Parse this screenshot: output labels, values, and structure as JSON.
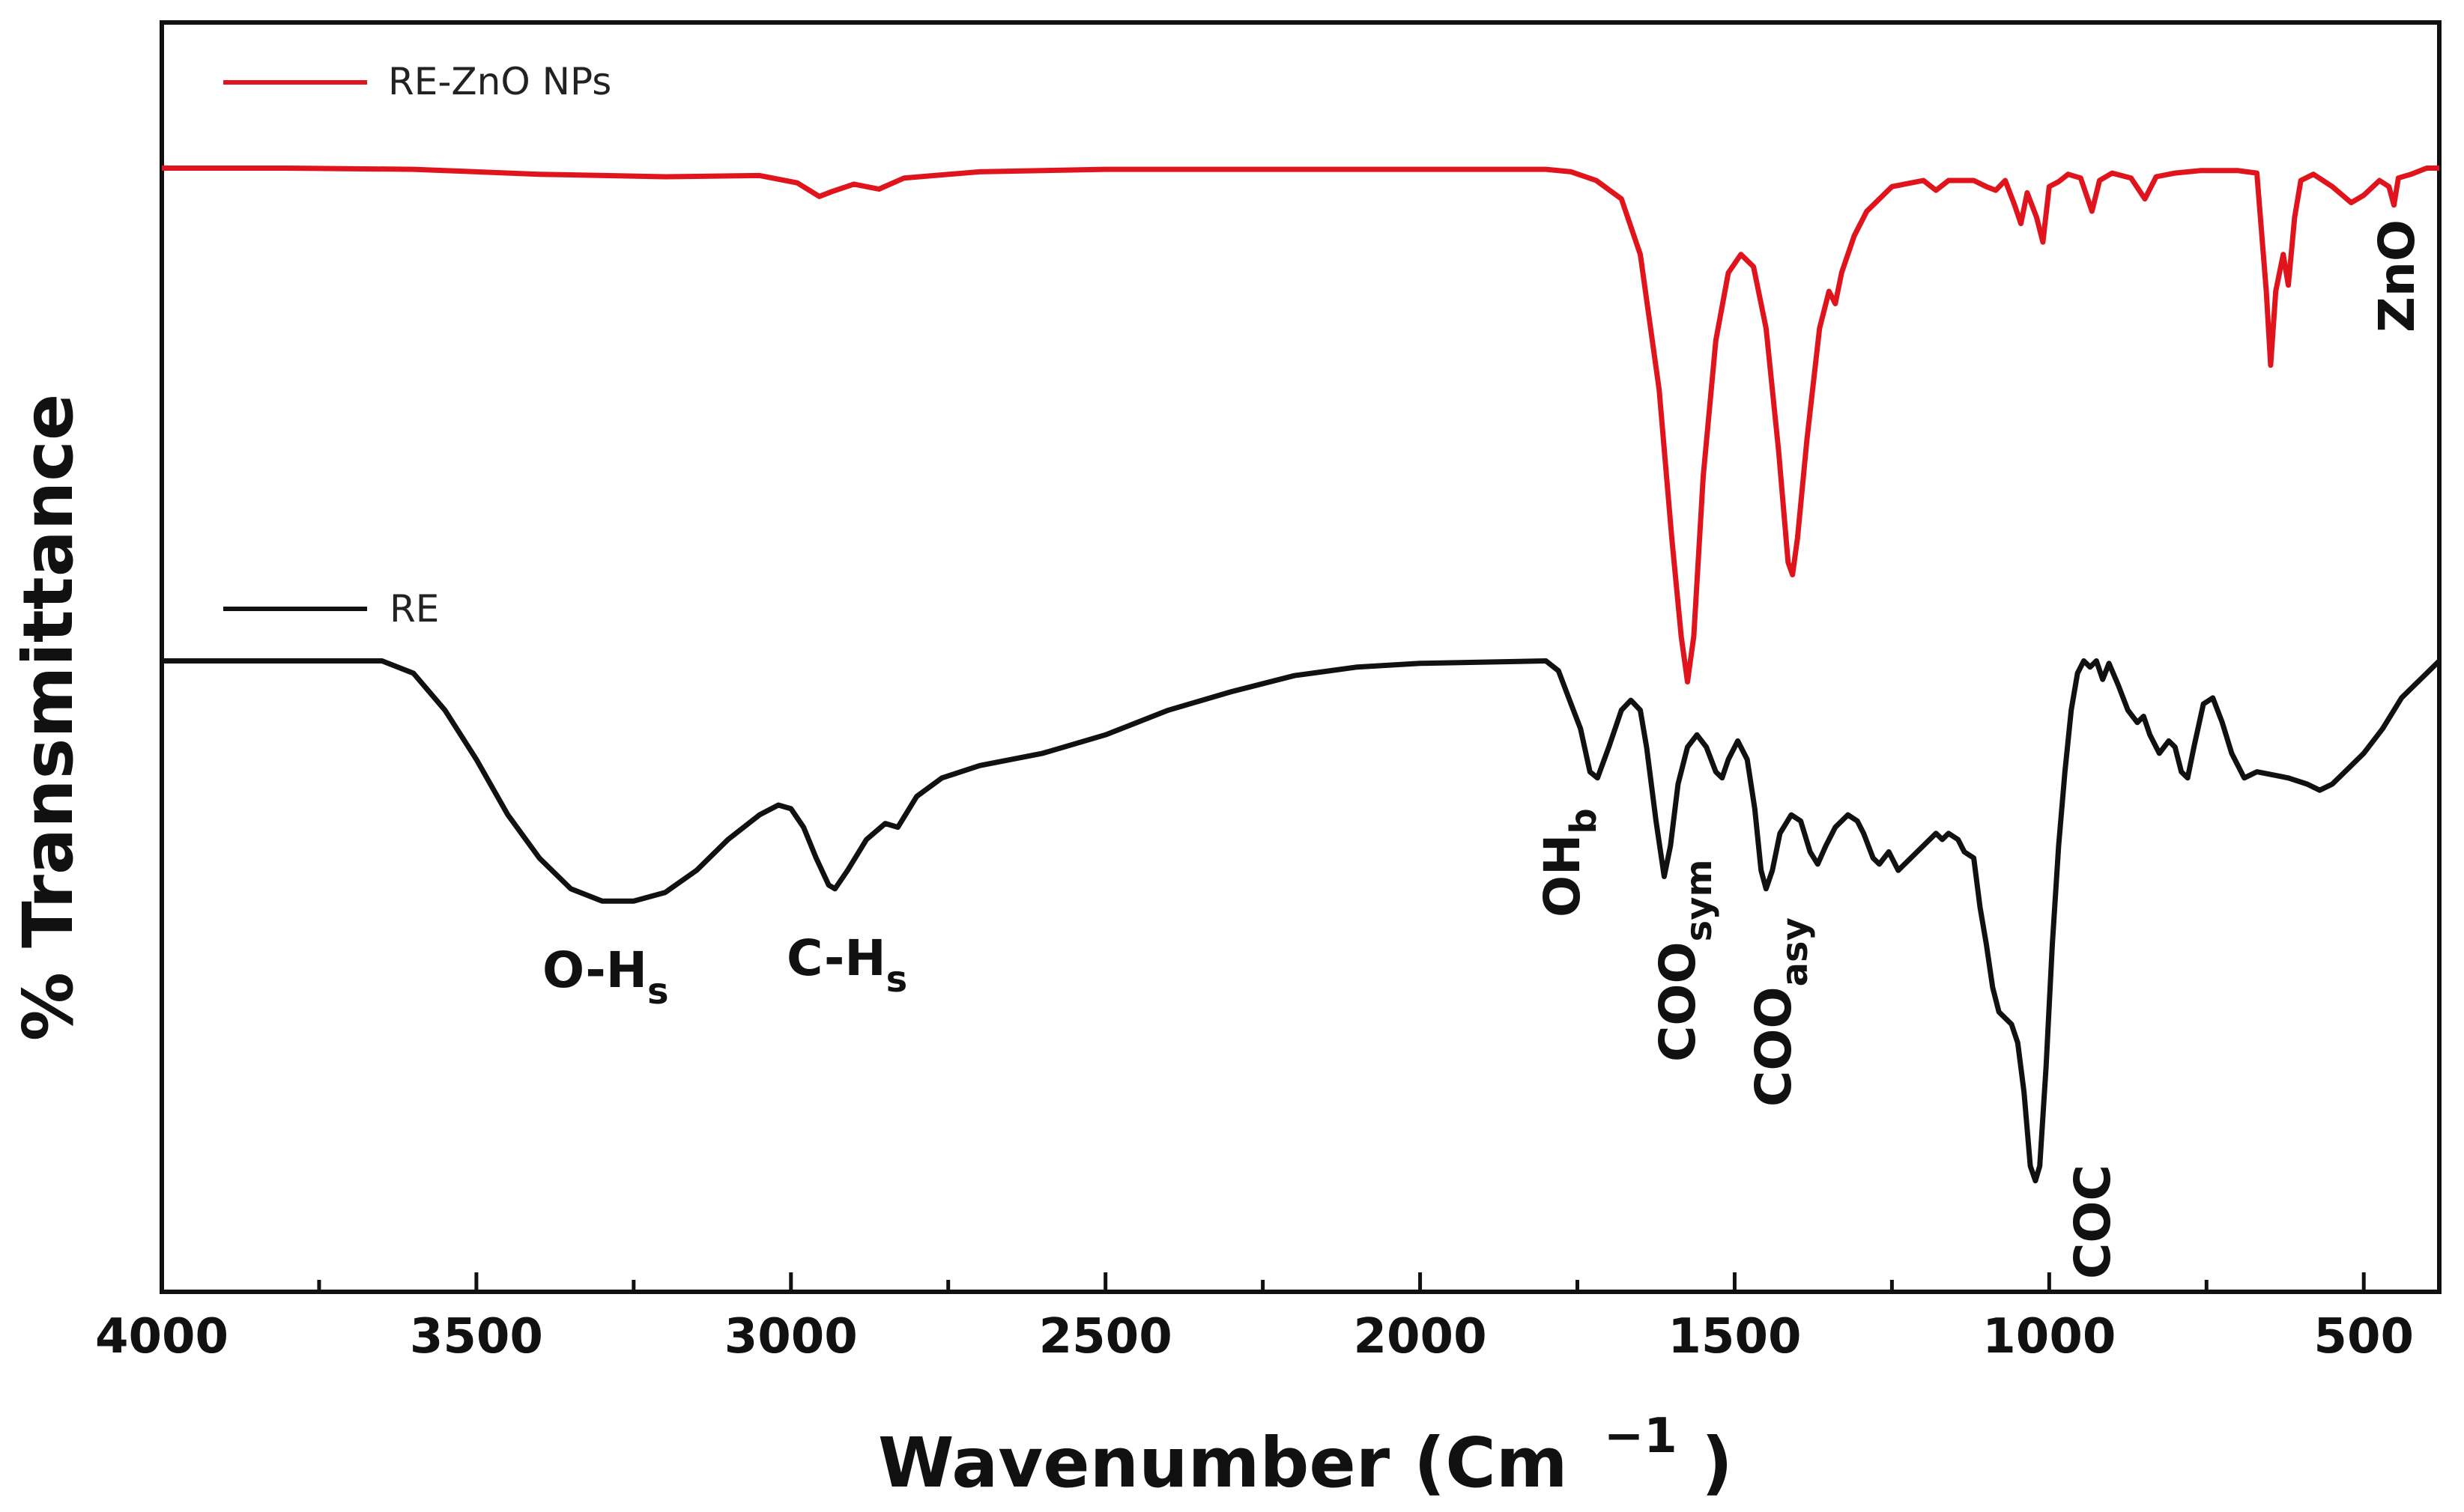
{
  "chart_data": {
    "type": "line",
    "title": "",
    "xlabel": "Wavenumber (Cm",
    "xlabel_sup": "−1",
    "ylabel": "% Transmittance",
    "xlim": [
      4000,
      380
    ],
    "x_reversed": true,
    "ylim": [
      0,
      100
    ],
    "grid": false,
    "x_ticks": [
      4000,
      3500,
      3000,
      2500,
      2000,
      1500,
      1000,
      500
    ],
    "x_tick_labels": [
      "4000",
      "3500",
      "3000",
      "2500",
      "2000",
      "1500",
      "1000",
      "500"
    ],
    "legend": [
      {
        "label": "RE-ZnO NPs",
        "color": "#e0141c"
      },
      {
        "label": "RE",
        "color": "#111111"
      }
    ],
    "series": [
      {
        "name": "RE-ZnO NPs",
        "color": "#e0141c",
        "points": [
          [
            4000,
            90.0
          ],
          [
            3800,
            90.0
          ],
          [
            3600,
            89.9
          ],
          [
            3400,
            89.5
          ],
          [
            3200,
            89.3
          ],
          [
            3050,
            89.4
          ],
          [
            2990,
            88.8
          ],
          [
            2955,
            87.7
          ],
          [
            2935,
            88.1
          ],
          [
            2900,
            88.7
          ],
          [
            2860,
            88.3
          ],
          [
            2820,
            89.2
          ],
          [
            2700,
            89.7
          ],
          [
            2500,
            89.9
          ],
          [
            2200,
            89.9
          ],
          [
            2000,
            89.9
          ],
          [
            1800,
            89.9
          ],
          [
            1760,
            89.7
          ],
          [
            1720,
            89.0
          ],
          [
            1680,
            87.5
          ],
          [
            1650,
            83.0
          ],
          [
            1620,
            72.0
          ],
          [
            1600,
            60.0
          ],
          [
            1585,
            52.0
          ],
          [
            1575,
            48.3
          ],
          [
            1565,
            52.0
          ],
          [
            1550,
            65.0
          ],
          [
            1530,
            76.0
          ],
          [
            1510,
            81.5
          ],
          [
            1490,
            83.0
          ],
          [
            1470,
            82.0
          ],
          [
            1450,
            77.0
          ],
          [
            1430,
            67.0
          ],
          [
            1415,
            58.0
          ],
          [
            1408,
            57.0
          ],
          [
            1400,
            60.0
          ],
          [
            1385,
            68.0
          ],
          [
            1365,
            77.0
          ],
          [
            1350,
            80.0
          ],
          [
            1340,
            79.0
          ],
          [
            1330,
            81.5
          ],
          [
            1310,
            84.5
          ],
          [
            1290,
            86.5
          ],
          [
            1250,
            88.5
          ],
          [
            1200,
            89.0
          ],
          [
            1180,
            88.2
          ],
          [
            1160,
            89.0
          ],
          [
            1120,
            89.0
          ],
          [
            1100,
            88.5
          ],
          [
            1085,
            88.2
          ],
          [
            1070,
            89.0
          ],
          [
            1055,
            87.0
          ],
          [
            1045,
            85.5
          ],
          [
            1035,
            88.0
          ],
          [
            1020,
            86.0
          ],
          [
            1010,
            84.0
          ],
          [
            1000,
            88.5
          ],
          [
            985,
            88.9
          ],
          [
            970,
            89.5
          ],
          [
            950,
            89.2
          ],
          [
            932,
            86.5
          ],
          [
            920,
            89.0
          ],
          [
            900,
            89.6
          ],
          [
            870,
            89.2
          ],
          [
            848,
            87.5
          ],
          [
            830,
            89.3
          ],
          [
            800,
            89.6
          ],
          [
            760,
            89.8
          ],
          [
            700,
            89.8
          ],
          [
            670,
            89.6
          ],
          [
            655,
            80.0
          ],
          [
            648,
            74.0
          ],
          [
            640,
            80.0
          ],
          [
            628,
            83.0
          ],
          [
            620,
            80.5
          ],
          [
            610,
            86.0
          ],
          [
            600,
            89.0
          ],
          [
            580,
            89.5
          ],
          [
            550,
            88.5
          ],
          [
            520,
            87.2
          ],
          [
            500,
            87.8
          ],
          [
            475,
            89.0
          ],
          [
            460,
            88.5
          ],
          [
            452,
            87.0
          ],
          [
            445,
            89.2
          ],
          [
            425,
            89.5
          ],
          [
            400,
            90.0
          ],
          [
            380,
            90.0
          ]
        ]
      },
      {
        "name": "RE",
        "color": "#111111",
        "points": [
          [
            4000,
            50.0
          ],
          [
            3800,
            50.0
          ],
          [
            3650,
            50.0
          ],
          [
            3600,
            49.0
          ],
          [
            3550,
            46.0
          ],
          [
            3500,
            42.0
          ],
          [
            3450,
            37.5
          ],
          [
            3400,
            34.0
          ],
          [
            3350,
            31.5
          ],
          [
            3300,
            30.5
          ],
          [
            3250,
            30.5
          ],
          [
            3200,
            31.2
          ],
          [
            3150,
            33.0
          ],
          [
            3100,
            35.5
          ],
          [
            3050,
            37.5
          ],
          [
            3020,
            38.3
          ],
          [
            3000,
            38.0
          ],
          [
            2980,
            36.5
          ],
          [
            2960,
            34.0
          ],
          [
            2940,
            31.8
          ],
          [
            2930,
            31.5
          ],
          [
            2910,
            33.0
          ],
          [
            2880,
            35.5
          ],
          [
            2850,
            36.8
          ],
          [
            2830,
            36.5
          ],
          [
            2800,
            39.0
          ],
          [
            2760,
            40.5
          ],
          [
            2700,
            41.5
          ],
          [
            2600,
            42.5
          ],
          [
            2500,
            44.0
          ],
          [
            2400,
            46.0
          ],
          [
            2300,
            47.5
          ],
          [
            2200,
            48.8
          ],
          [
            2100,
            49.5
          ],
          [
            2000,
            49.8
          ],
          [
            1800,
            50.0
          ],
          [
            1780,
            49.2
          ],
          [
            1760,
            46.5
          ],
          [
            1745,
            44.5
          ],
          [
            1730,
            41.0
          ],
          [
            1718,
            40.5
          ],
          [
            1700,
            43.0
          ],
          [
            1680,
            46.0
          ],
          [
            1665,
            46.8
          ],
          [
            1650,
            46.0
          ],
          [
            1640,
            43.0
          ],
          [
            1625,
            37.0
          ],
          [
            1612,
            32.5
          ],
          [
            1602,
            35.0
          ],
          [
            1590,
            40.0
          ],
          [
            1575,
            43.0
          ],
          [
            1560,
            44.0
          ],
          [
            1545,
            43.0
          ],
          [
            1530,
            41.0
          ],
          [
            1520,
            40.5
          ],
          [
            1510,
            42.0
          ],
          [
            1495,
            43.5
          ],
          [
            1480,
            42.0
          ],
          [
            1468,
            38.0
          ],
          [
            1458,
            33.0
          ],
          [
            1450,
            31.5
          ],
          [
            1440,
            33.0
          ],
          [
            1428,
            36.0
          ],
          [
            1410,
            37.5
          ],
          [
            1395,
            37.0
          ],
          [
            1380,
            34.5
          ],
          [
            1368,
            33.5
          ],
          [
            1355,
            35.0
          ],
          [
            1340,
            36.5
          ],
          [
            1320,
            37.5
          ],
          [
            1305,
            37.0
          ],
          [
            1295,
            36.0
          ],
          [
            1280,
            34.0
          ],
          [
            1270,
            33.5
          ],
          [
            1255,
            34.5
          ],
          [
            1240,
            33.0
          ],
          [
            1220,
            34.0
          ],
          [
            1200,
            35.0
          ],
          [
            1180,
            36.0
          ],
          [
            1170,
            35.5
          ],
          [
            1160,
            36.0
          ],
          [
            1145,
            35.5
          ],
          [
            1135,
            34.5
          ],
          [
            1120,
            34.0
          ],
          [
            1110,
            30.0
          ],
          [
            1100,
            27.0
          ],
          [
            1090,
            23.5
          ],
          [
            1080,
            21.5
          ],
          [
            1070,
            21.0
          ],
          [
            1060,
            20.5
          ],
          [
            1050,
            19.0
          ],
          [
            1040,
            15.0
          ],
          [
            1030,
            9.0
          ],
          [
            1022,
            7.8
          ],
          [
            1015,
            9.0
          ],
          [
            1005,
            17.0
          ],
          [
            995,
            27.0
          ],
          [
            985,
            35.0
          ],
          [
            975,
            41.0
          ],
          [
            965,
            46.0
          ],
          [
            955,
            49.0
          ],
          [
            945,
            50.0
          ],
          [
            935,
            49.5
          ],
          [
            925,
            50.0
          ],
          [
            915,
            48.5
          ],
          [
            905,
            49.8
          ],
          [
            890,
            48.0
          ],
          [
            875,
            46.0
          ],
          [
            860,
            45.0
          ],
          [
            850,
            45.5
          ],
          [
            840,
            44.0
          ],
          [
            825,
            42.5
          ],
          [
            810,
            43.5
          ],
          [
            800,
            43.0
          ],
          [
            790,
            41.0
          ],
          [
            780,
            40.5
          ],
          [
            770,
            43.0
          ],
          [
            755,
            46.5
          ],
          [
            740,
            47.0
          ],
          [
            725,
            45.0
          ],
          [
            710,
            42.5
          ],
          [
            690,
            40.5
          ],
          [
            670,
            41.0
          ],
          [
            650,
            40.8
          ],
          [
            620,
            40.5
          ],
          [
            590,
            40.0
          ],
          [
            570,
            39.5
          ],
          [
            550,
            40.0
          ],
          [
            530,
            41.0
          ],
          [
            500,
            42.5
          ],
          [
            470,
            44.5
          ],
          [
            440,
            47.0
          ],
          [
            420,
            48.0
          ],
          [
            400,
            49.0
          ],
          [
            390,
            49.5
          ],
          [
            380,
            50.0
          ]
        ]
      }
    ],
    "annotations": [
      {
        "id": "oh-s",
        "main": "O-H",
        "sub": "s",
        "x": 3360
      },
      {
        "id": "ch-s",
        "main": "C-H",
        "sub": "s",
        "x": 2990
      },
      {
        "id": "oh-b",
        "main": "OH",
        "sub": "b",
        "x": 1770
      },
      {
        "id": "coo-sym",
        "main": "COO",
        "sub": "sym",
        "x": 1610
      },
      {
        "id": "coo-asy",
        "main": "COO",
        "sub": "asy",
        "x": 1460
      },
      {
        "id": "coc",
        "main": "COC",
        "sub": "",
        "x": 935
      },
      {
        "id": "zno",
        "main": "ZnO",
        "sub": "",
        "x": 460
      }
    ]
  }
}
